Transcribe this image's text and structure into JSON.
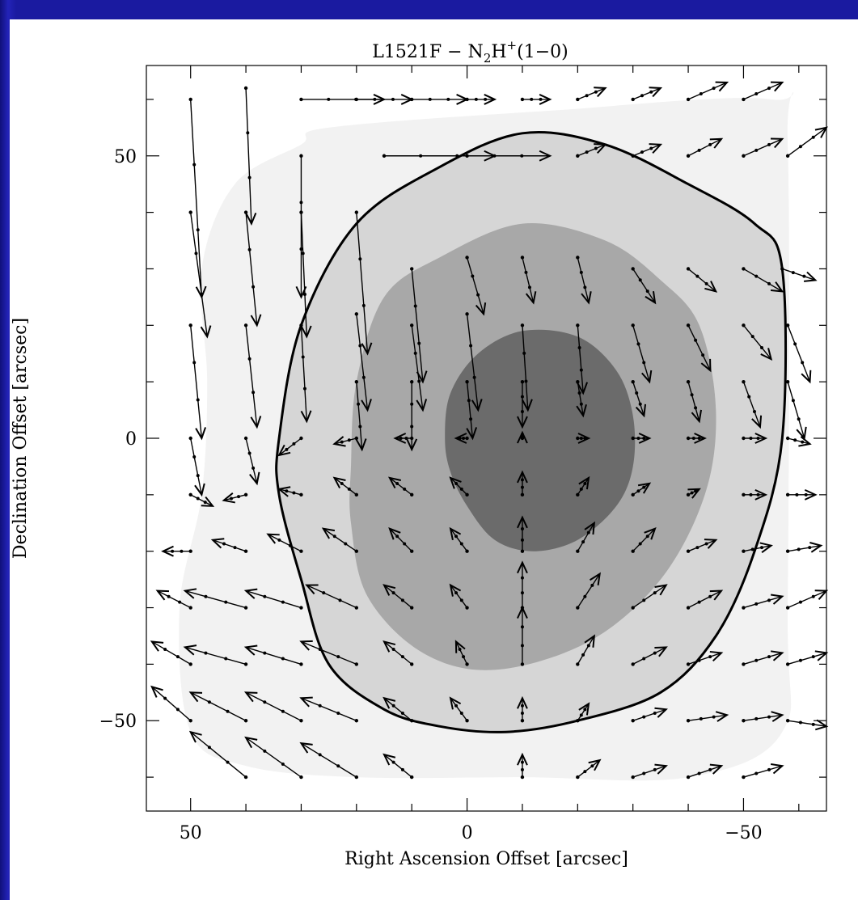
{
  "chart_data": {
    "type": "vector-field",
    "title": {
      "prefix": "L1521F − N",
      "sub": "2",
      "mid": "H",
      "sup": "+",
      "suffix": "(1−0)"
    },
    "xlabel": "Right Ascension Offset [arcsec]",
    "ylabel": "Declination Offset [arcsec]",
    "xlim": [
      58,
      -65
    ],
    "ylim": [
      -66,
      66
    ],
    "xticks": [
      50,
      0,
      -50
    ],
    "yticks": [
      50,
      0,
      -50
    ],
    "x_tick_labels": [
      "50",
      "0",
      "−50"
    ],
    "y_tick_labels": [
      "50",
      "0",
      "−50"
    ],
    "minor_tick_step": 10,
    "contour_fills": [
      {
        "level": 1,
        "color": "#f2f2f2",
        "points": [
          [
            25,
            55
          ],
          [
            -15,
            58
          ],
          [
            -55,
            60
          ],
          [
            -58,
            52
          ],
          [
            -58,
            -30
          ],
          [
            -57,
            -52
          ],
          [
            -40,
            -60
          ],
          [
            -10,
            -60
          ],
          [
            20,
            -60
          ],
          [
            40,
            -58
          ],
          [
            50,
            -52
          ],
          [
            52,
            -30
          ],
          [
            48,
            -10
          ],
          [
            47,
            10
          ],
          [
            48,
            30
          ],
          [
            42,
            45
          ],
          [
            30,
            52
          ]
        ]
      },
      {
        "level": 2,
        "color": "#d6d6d6",
        "points": [
          [
            34,
            0
          ],
          [
            30,
            20
          ],
          [
            20,
            38
          ],
          [
            5,
            48
          ],
          [
            -10,
            54
          ],
          [
            -25,
            52
          ],
          [
            -40,
            45
          ],
          [
            -52,
            38
          ],
          [
            -57,
            30
          ],
          [
            -57,
            0
          ],
          [
            -52,
            -20
          ],
          [
            -45,
            -35
          ],
          [
            -35,
            -45
          ],
          [
            -20,
            -50
          ],
          [
            -7,
            -52
          ],
          [
            5,
            -51
          ],
          [
            15,
            -48
          ],
          [
            25,
            -40
          ],
          [
            30,
            -25
          ],
          [
            34,
            -10
          ]
        ]
      },
      {
        "level": 3,
        "color": "#a8a8a8",
        "points": [
          [
            21,
            -5
          ],
          [
            20,
            10
          ],
          [
            15,
            25
          ],
          [
            5,
            32
          ],
          [
            -10,
            38
          ],
          [
            -25,
            35
          ],
          [
            -35,
            28
          ],
          [
            -42,
            20
          ],
          [
            -45,
            5
          ],
          [
            -43,
            -10
          ],
          [
            -35,
            -25
          ],
          [
            -22,
            -36
          ],
          [
            -5,
            -41
          ],
          [
            8,
            -38
          ],
          [
            18,
            -28
          ],
          [
            21,
            -15
          ]
        ]
      },
      {
        "level": 4,
        "color": "#6b6b6b",
        "points": [
          [
            4,
            0
          ],
          [
            3,
            8
          ],
          [
            -2,
            15
          ],
          [
            -10,
            19
          ],
          [
            -20,
            18
          ],
          [
            -27,
            12
          ],
          [
            -30,
            4
          ],
          [
            -30,
            -5
          ],
          [
            -27,
            -12
          ],
          [
            -20,
            -18
          ],
          [
            -12,
            -20
          ],
          [
            -5,
            -18
          ],
          [
            0,
            -12
          ],
          [
            3,
            -6
          ]
        ]
      }
    ],
    "outline": {
      "color": "#000000",
      "points": [
        [
          34,
          0
        ],
        [
          30,
          20
        ],
        [
          20,
          38
        ],
        [
          5,
          48
        ],
        [
          -10,
          54
        ],
        [
          -25,
          52
        ],
        [
          -40,
          45
        ],
        [
          -52,
          38
        ],
        [
          -57,
          30
        ],
        [
          -57,
          0
        ],
        [
          -52,
          -20
        ],
        [
          -45,
          -35
        ],
        [
          -35,
          -45
        ],
        [
          -20,
          -50
        ],
        [
          -7,
          -52
        ],
        [
          5,
          -51
        ],
        [
          15,
          -48
        ],
        [
          25,
          -40
        ],
        [
          30,
          -25
        ],
        [
          34,
          -10
        ]
      ]
    },
    "arrows": [
      {
        "x0": 50,
        "y0": 60,
        "x1": 48,
        "y1": 25
      },
      {
        "x0": 40,
        "y0": 62,
        "x1": 39,
        "y1": 38
      },
      {
        "x0": 30,
        "y0": 50,
        "x1": 30,
        "y1": 25
      },
      {
        "x0": 20,
        "y0": 40,
        "x1": 18,
        "y1": 15
      },
      {
        "x0": 10,
        "y0": 30,
        "x1": 8,
        "y1": 10
      },
      {
        "x0": 0,
        "y0": 32,
        "x1": -3,
        "y1": 22
      },
      {
        "x0": -10,
        "y0": 32,
        "x1": -12,
        "y1": 24
      },
      {
        "x0": -20,
        "y0": 32,
        "x1": -22,
        "y1": 24
      },
      {
        "x0": -30,
        "y0": 30,
        "x1": -34,
        "y1": 24
      },
      {
        "x0": -40,
        "y0": 30,
        "x1": -45,
        "y1": 26
      },
      {
        "x0": -50,
        "y0": 30,
        "x1": -57,
        "y1": 26
      },
      {
        "x0": -57,
        "y0": 30,
        "x1": -63,
        "y1": 28
      },
      {
        "x0": 50,
        "y0": 40,
        "x1": 47,
        "y1": 18
      },
      {
        "x0": 40,
        "y0": 40,
        "x1": 38,
        "y1": 20
      },
      {
        "x0": 30,
        "y0": 40,
        "x1": 29,
        "y1": 18
      },
      {
        "x0": 20,
        "y0": 22,
        "x1": 18,
        "y1": 5
      },
      {
        "x0": 10,
        "y0": 20,
        "x1": 8,
        "y1": 5
      },
      {
        "x0": 0,
        "y0": 22,
        "x1": -2,
        "y1": 5
      },
      {
        "x0": -10,
        "y0": 20,
        "x1": -11,
        "y1": 5
      },
      {
        "x0": -20,
        "y0": 20,
        "x1": -21,
        "y1": 8
      },
      {
        "x0": -30,
        "y0": 20,
        "x1": -33,
        "y1": 10
      },
      {
        "x0": -40,
        "y0": 20,
        "x1": -44,
        "y1": 12
      },
      {
        "x0": -50,
        "y0": 20,
        "x1": -55,
        "y1": 14
      },
      {
        "x0": -58,
        "y0": 20,
        "x1": -62,
        "y1": 10
      },
      {
        "x0": 50,
        "y0": 20,
        "x1": 48,
        "y1": 0
      },
      {
        "x0": 40,
        "y0": 20,
        "x1": 38,
        "y1": 2
      },
      {
        "x0": 30,
        "y0": 20,
        "x1": 29,
        "y1": 3
      },
      {
        "x0": 20,
        "y0": 10,
        "x1": 19,
        "y1": -2
      },
      {
        "x0": 10,
        "y0": 10,
        "x1": 10,
        "y1": -2
      },
      {
        "x0": 0,
        "y0": 10,
        "x1": -1,
        "y1": 0
      },
      {
        "x0": -10,
        "y0": 10,
        "x1": -10,
        "y1": 2
      },
      {
        "x0": -20,
        "y0": 10,
        "x1": -21,
        "y1": 4
      },
      {
        "x0": -30,
        "y0": 10,
        "x1": -32,
        "y1": 4
      },
      {
        "x0": -40,
        "y0": 10,
        "x1": -42,
        "y1": 3
      },
      {
        "x0": -50,
        "y0": 10,
        "x1": -53,
        "y1": 2
      },
      {
        "x0": -58,
        "y0": 10,
        "x1": -61,
        "y1": 0
      },
      {
        "x0": 50,
        "y0": 0,
        "x1": 48,
        "y1": -10
      },
      {
        "x0": 40,
        "y0": 0,
        "x1": 38,
        "y1": -8
      },
      {
        "x0": 30,
        "y0": 0,
        "x1": 34,
        "y1": -3
      },
      {
        "x0": 20,
        "y0": 0,
        "x1": 24,
        "y1": -1
      },
      {
        "x0": 10,
        "y0": 0,
        "x1": 13,
        "y1": 0
      },
      {
        "x0": 0,
        "y0": 0,
        "x1": 2,
        "y1": 0
      },
      {
        "x0": -10,
        "y0": 0,
        "x1": -10,
        "y1": 1
      },
      {
        "x0": -20,
        "y0": 0,
        "x1": -22,
        "y1": 0
      },
      {
        "x0": -30,
        "y0": 0,
        "x1": -33,
        "y1": 0
      },
      {
        "x0": -40,
        "y0": 0,
        "x1": -43,
        "y1": 0
      },
      {
        "x0": -50,
        "y0": 0,
        "x1": -54,
        "y1": 0
      },
      {
        "x0": -58,
        "y0": 0,
        "x1": -62,
        "y1": -1
      },
      {
        "x0": 50,
        "y0": -10,
        "x1": 46,
        "y1": -12
      },
      {
        "x0": 40,
        "y0": -10,
        "x1": 44,
        "y1": -11
      },
      {
        "x0": 30,
        "y0": -10,
        "x1": 34,
        "y1": -9
      },
      {
        "x0": 20,
        "y0": -10,
        "x1": 24,
        "y1": -7
      },
      {
        "x0": 10,
        "y0": -10,
        "x1": 14,
        "y1": -7
      },
      {
        "x0": 0,
        "y0": -10,
        "x1": 3,
        "y1": -7
      },
      {
        "x0": -10,
        "y0": -10,
        "x1": -10,
        "y1": -6
      },
      {
        "x0": -20,
        "y0": -10,
        "x1": -22,
        "y1": -7
      },
      {
        "x0": -30,
        "y0": -10,
        "x1": -33,
        "y1": -8
      },
      {
        "x0": -40,
        "y0": -10,
        "x1": -42,
        "y1": -9
      },
      {
        "x0": -50,
        "y0": -10,
        "x1": -54,
        "y1": -10
      },
      {
        "x0": -58,
        "y0": -10,
        "x1": -63,
        "y1": -10
      },
      {
        "x0": 50,
        "y0": -20,
        "x1": 55,
        "y1": -20
      },
      {
        "x0": 40,
        "y0": -20,
        "x1": 46,
        "y1": -18
      },
      {
        "x0": 30,
        "y0": -20,
        "x1": 36,
        "y1": -17
      },
      {
        "x0": 20,
        "y0": -20,
        "x1": 26,
        "y1": -16
      },
      {
        "x0": 10,
        "y0": -20,
        "x1": 14,
        "y1": -16
      },
      {
        "x0": 0,
        "y0": -20,
        "x1": 3,
        "y1": -16
      },
      {
        "x0": -10,
        "y0": -20,
        "x1": -10,
        "y1": -14
      },
      {
        "x0": -20,
        "y0": -20,
        "x1": -23,
        "y1": -15
      },
      {
        "x0": -30,
        "y0": -20,
        "x1": -34,
        "y1": -16
      },
      {
        "x0": -40,
        "y0": -20,
        "x1": -45,
        "y1": -18
      },
      {
        "x0": -50,
        "y0": -20,
        "x1": -55,
        "y1": -19
      },
      {
        "x0": -58,
        "y0": -20,
        "x1": -64,
        "y1": -19
      },
      {
        "x0": 50,
        "y0": -30,
        "x1": 56,
        "y1": -27
      },
      {
        "x0": 40,
        "y0": -30,
        "x1": 51,
        "y1": -27
      },
      {
        "x0": 30,
        "y0": -30,
        "x1": 40,
        "y1": -27
      },
      {
        "x0": 20,
        "y0": -30,
        "x1": 29,
        "y1": -26
      },
      {
        "x0": 10,
        "y0": -30,
        "x1": 15,
        "y1": -26
      },
      {
        "x0": 0,
        "y0": -30,
        "x1": 3,
        "y1": -26
      },
      {
        "x0": -10,
        "y0": -30,
        "x1": -10,
        "y1": -22
      },
      {
        "x0": -20,
        "y0": -30,
        "x1": -24,
        "y1": -24
      },
      {
        "x0": -30,
        "y0": -30,
        "x1": -36,
        "y1": -26
      },
      {
        "x0": -40,
        "y0": -30,
        "x1": -46,
        "y1": -27
      },
      {
        "x0": -50,
        "y0": -30,
        "x1": -57,
        "y1": -28
      },
      {
        "x0": -58,
        "y0": -30,
        "x1": -65,
        "y1": -27
      },
      {
        "x0": 50,
        "y0": -40,
        "x1": 57,
        "y1": -36
      },
      {
        "x0": 40,
        "y0": -40,
        "x1": 51,
        "y1": -37
      },
      {
        "x0": 30,
        "y0": -40,
        "x1": 40,
        "y1": -37
      },
      {
        "x0": 20,
        "y0": -40,
        "x1": 30,
        "y1": -36
      },
      {
        "x0": 10,
        "y0": -40,
        "x1": 15,
        "y1": -36
      },
      {
        "x0": 0,
        "y0": -40,
        "x1": 2,
        "y1": -36
      },
      {
        "x0": -10,
        "y0": -40,
        "x1": -10,
        "y1": -30
      },
      {
        "x0": -20,
        "y0": -40,
        "x1": -23,
        "y1": -35
      },
      {
        "x0": -30,
        "y0": -40,
        "x1": -36,
        "y1": -37
      },
      {
        "x0": -40,
        "y0": -40,
        "x1": -46,
        "y1": -38
      },
      {
        "x0": -50,
        "y0": -40,
        "x1": -57,
        "y1": -38
      },
      {
        "x0": -58,
        "y0": -40,
        "x1": -65,
        "y1": -38
      },
      {
        "x0": 50,
        "y0": -50,
        "x1": 57,
        "y1": -44
      },
      {
        "x0": 40,
        "y0": -50,
        "x1": 50,
        "y1": -45
      },
      {
        "x0": 30,
        "y0": -50,
        "x1": 40,
        "y1": -45
      },
      {
        "x0": 20,
        "y0": -50,
        "x1": 30,
        "y1": -46
      },
      {
        "x0": 10,
        "y0": -50,
        "x1": 15,
        "y1": -46
      },
      {
        "x0": 0,
        "y0": -50,
        "x1": 3,
        "y1": -46
      },
      {
        "x0": -10,
        "y0": -50,
        "x1": -10,
        "y1": -46
      },
      {
        "x0": -20,
        "y0": -50,
        "x1": -22,
        "y1": -47
      },
      {
        "x0": -30,
        "y0": -50,
        "x1": -36,
        "y1": -48
      },
      {
        "x0": -40,
        "y0": -50,
        "x1": -47,
        "y1": -49
      },
      {
        "x0": -50,
        "y0": -50,
        "x1": -57,
        "y1": -49
      },
      {
        "x0": -58,
        "y0": -50,
        "x1": -65,
        "y1": -51
      },
      {
        "x0": 40,
        "y0": -60,
        "x1": 50,
        "y1": -52
      },
      {
        "x0": 30,
        "y0": -60,
        "x1": 40,
        "y1": -53
      },
      {
        "x0": 20,
        "y0": -60,
        "x1": 30,
        "y1": -54
      },
      {
        "x0": 10,
        "y0": -60,
        "x1": 15,
        "y1": -56
      },
      {
        "x0": -10,
        "y0": -60,
        "x1": -10,
        "y1": -56
      },
      {
        "x0": -20,
        "y0": -60,
        "x1": -24,
        "y1": -57
      },
      {
        "x0": -30,
        "y0": -60,
        "x1": -36,
        "y1": -58
      },
      {
        "x0": -40,
        "y0": -60,
        "x1": -46,
        "y1": -58
      },
      {
        "x0": -50,
        "y0": -60,
        "x1": -57,
        "y1": -58
      },
      {
        "x0": 30,
        "y0": 60,
        "x1": 15,
        "y1": 60
      },
      {
        "x0": 20,
        "y0": 60,
        "x1": 10,
        "y1": 60
      },
      {
        "x0": 10,
        "y0": 60,
        "x1": 0,
        "y1": 60
      },
      {
        "x0": 0,
        "y0": 60,
        "x1": -5,
        "y1": 60
      },
      {
        "x0": -10,
        "y0": 60,
        "x1": -15,
        "y1": 60
      },
      {
        "x0": -20,
        "y0": 60,
        "x1": -25,
        "y1": 62
      },
      {
        "x0": -30,
        "y0": 60,
        "x1": -35,
        "y1": 62
      },
      {
        "x0": -40,
        "y0": 60,
        "x1": -47,
        "y1": 63
      },
      {
        "x0": -50,
        "y0": 60,
        "x1": -57,
        "y1": 63
      },
      {
        "x0": 15,
        "y0": 50,
        "x1": -5,
        "y1": 50
      },
      {
        "x0": 0,
        "y0": 50,
        "x1": -15,
        "y1": 50
      },
      {
        "x0": -20,
        "y0": 50,
        "x1": -25,
        "y1": 52
      },
      {
        "x0": -30,
        "y0": 50,
        "x1": -35,
        "y1": 52
      },
      {
        "x0": -40,
        "y0": 50,
        "x1": -46,
        "y1": 53
      },
      {
        "x0": -50,
        "y0": 50,
        "x1": -57,
        "y1": 53
      },
      {
        "x0": -58,
        "y0": 50,
        "x1": -65,
        "y1": 55
      }
    ]
  }
}
